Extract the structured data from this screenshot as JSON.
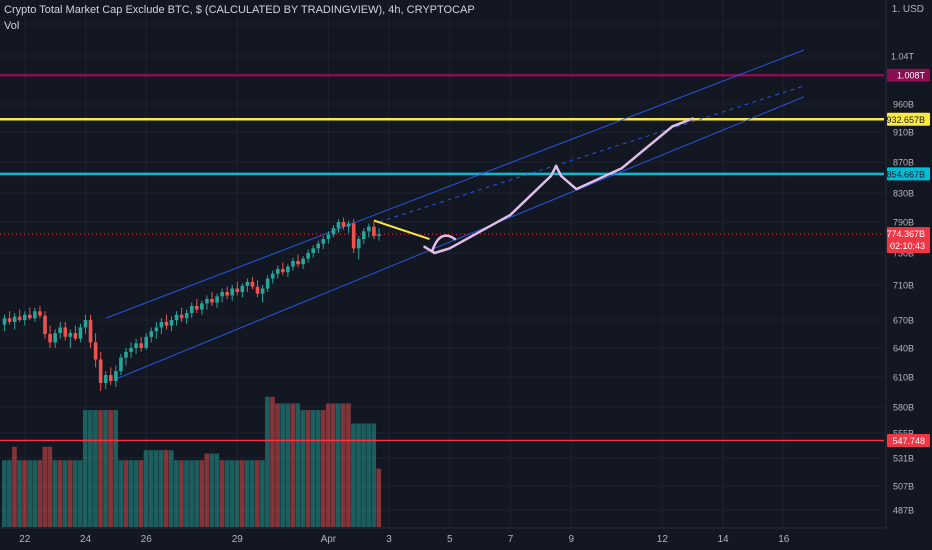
{
  "header": {
    "title": "Crypto Total Market Cap Exclude BTC, $ (CALCULATED BY TRADINGVIEW), 4h, CRYPTOCAP",
    "volume_label": "Vol",
    "scale_currency": "1. USD"
  },
  "chart_data": {
    "type": "candlestick",
    "title": "Crypto Total Market Cap Exclude BTC, $ (CALCULATED BY TRADINGVIEW), 4h, CRYPTOCAP",
    "x_tick_labels": [
      {
        "label": "22",
        "bar": 4
      },
      {
        "label": "24",
        "bar": 16
      },
      {
        "label": "26",
        "bar": 28
      },
      {
        "label": "29",
        "bar": 46
      },
      {
        "label": "Apr",
        "bar": 64
      },
      {
        "label": "3",
        "bar": 76
      },
      {
        "label": "5",
        "bar": 88
      },
      {
        "label": "7",
        "bar": 100
      },
      {
        "label": "9",
        "bar": 112
      },
      {
        "label": "12",
        "bar": 130
      },
      {
        "label": "14",
        "bar": 142
      },
      {
        "label": "16",
        "bar": 154
      }
    ],
    "y_tick_labels": [
      "1.04T",
      "960B",
      "910B",
      "870B",
      "830B",
      "790B",
      "750B",
      "710B",
      "670B",
      "640B",
      "610B",
      "580B",
      "555B",
      "531B",
      "507B",
      "487B"
    ],
    "y_tick_values": [
      1040,
      960,
      910,
      870,
      830,
      790,
      750,
      710,
      670,
      640,
      610,
      580,
      555,
      531,
      507,
      487
    ],
    "ylim": [
      480,
      1100
    ],
    "candles": [
      {
        "o": 665,
        "h": 676,
        "l": 658,
        "c": 672
      },
      {
        "o": 672,
        "h": 680,
        "l": 665,
        "c": 668
      },
      {
        "o": 668,
        "h": 678,
        "l": 660,
        "c": 674
      },
      {
        "o": 674,
        "h": 682,
        "l": 668,
        "c": 670
      },
      {
        "o": 670,
        "h": 680,
        "l": 664,
        "c": 676
      },
      {
        "o": 676,
        "h": 684,
        "l": 670,
        "c": 672
      },
      {
        "o": 672,
        "h": 684,
        "l": 668,
        "c": 680
      },
      {
        "o": 680,
        "h": 686,
        "l": 672,
        "c": 675
      },
      {
        "o": 675,
        "h": 680,
        "l": 650,
        "c": 655
      },
      {
        "o": 655,
        "h": 664,
        "l": 640,
        "c": 646
      },
      {
        "o": 646,
        "h": 660,
        "l": 640,
        "c": 656
      },
      {
        "o": 656,
        "h": 668,
        "l": 650,
        "c": 662
      },
      {
        "o": 662,
        "h": 668,
        "l": 648,
        "c": 652
      },
      {
        "o": 652,
        "h": 660,
        "l": 640,
        "c": 656
      },
      {
        "o": 656,
        "h": 664,
        "l": 648,
        "c": 650
      },
      {
        "o": 650,
        "h": 666,
        "l": 646,
        "c": 662
      },
      {
        "o": 662,
        "h": 676,
        "l": 655,
        "c": 670
      },
      {
        "o": 670,
        "h": 676,
        "l": 640,
        "c": 646
      },
      {
        "o": 646,
        "h": 656,
        "l": 620,
        "c": 628
      },
      {
        "o": 628,
        "h": 636,
        "l": 596,
        "c": 604
      },
      {
        "o": 604,
        "h": 616,
        "l": 598,
        "c": 612
      },
      {
        "o": 612,
        "h": 620,
        "l": 602,
        "c": 606
      },
      {
        "o": 606,
        "h": 622,
        "l": 600,
        "c": 616
      },
      {
        "o": 616,
        "h": 634,
        "l": 612,
        "c": 630
      },
      {
        "o": 630,
        "h": 640,
        "l": 622,
        "c": 636
      },
      {
        "o": 636,
        "h": 646,
        "l": 630,
        "c": 640
      },
      {
        "o": 640,
        "h": 650,
        "l": 634,
        "c": 645
      },
      {
        "o": 645,
        "h": 652,
        "l": 636,
        "c": 640
      },
      {
        "o": 640,
        "h": 656,
        "l": 638,
        "c": 652
      },
      {
        "o": 652,
        "h": 662,
        "l": 646,
        "c": 658
      },
      {
        "o": 658,
        "h": 668,
        "l": 650,
        "c": 662
      },
      {
        "o": 662,
        "h": 672,
        "l": 655,
        "c": 668
      },
      {
        "o": 668,
        "h": 676,
        "l": 660,
        "c": 664
      },
      {
        "o": 664,
        "h": 674,
        "l": 658,
        "c": 670
      },
      {
        "o": 670,
        "h": 680,
        "l": 664,
        "c": 676
      },
      {
        "o": 676,
        "h": 684,
        "l": 668,
        "c": 672
      },
      {
        "o": 672,
        "h": 682,
        "l": 666,
        "c": 678
      },
      {
        "o": 678,
        "h": 690,
        "l": 672,
        "c": 686
      },
      {
        "o": 686,
        "h": 694,
        "l": 678,
        "c": 682
      },
      {
        "o": 682,
        "h": 692,
        "l": 676,
        "c": 689
      },
      {
        "o": 689,
        "h": 698,
        "l": 682,
        "c": 694
      },
      {
        "o": 694,
        "h": 702,
        "l": 686,
        "c": 690
      },
      {
        "o": 690,
        "h": 700,
        "l": 684,
        "c": 697
      },
      {
        "o": 697,
        "h": 706,
        "l": 690,
        "c": 702
      },
      {
        "o": 702,
        "h": 708,
        "l": 694,
        "c": 698
      },
      {
        "o": 698,
        "h": 710,
        "l": 692,
        "c": 706
      },
      {
        "o": 706,
        "h": 714,
        "l": 698,
        "c": 702
      },
      {
        "o": 702,
        "h": 712,
        "l": 696,
        "c": 709
      },
      {
        "o": 709,
        "h": 718,
        "l": 702,
        "c": 714
      },
      {
        "o": 714,
        "h": 720,
        "l": 705,
        "c": 708
      },
      {
        "o": 708,
        "h": 716,
        "l": 696,
        "c": 700
      },
      {
        "o": 700,
        "h": 710,
        "l": 690,
        "c": 706
      },
      {
        "o": 706,
        "h": 722,
        "l": 702,
        "c": 718
      },
      {
        "o": 718,
        "h": 728,
        "l": 712,
        "c": 724
      },
      {
        "o": 724,
        "h": 734,
        "l": 718,
        "c": 730
      },
      {
        "o": 730,
        "h": 738,
        "l": 722,
        "c": 726
      },
      {
        "o": 726,
        "h": 736,
        "l": 720,
        "c": 733
      },
      {
        "o": 733,
        "h": 744,
        "l": 728,
        "c": 740
      },
      {
        "o": 740,
        "h": 748,
        "l": 732,
        "c": 736
      },
      {
        "o": 736,
        "h": 746,
        "l": 730,
        "c": 743
      },
      {
        "o": 743,
        "h": 754,
        "l": 738,
        "c": 750
      },
      {
        "o": 750,
        "h": 760,
        "l": 744,
        "c": 756
      },
      {
        "o": 756,
        "h": 766,
        "l": 750,
        "c": 762
      },
      {
        "o": 762,
        "h": 772,
        "l": 755,
        "c": 768
      },
      {
        "o": 768,
        "h": 778,
        "l": 762,
        "c": 774
      },
      {
        "o": 774,
        "h": 786,
        "l": 770,
        "c": 782
      },
      {
        "o": 782,
        "h": 794,
        "l": 776,
        "c": 790
      },
      {
        "o": 790,
        "h": 796,
        "l": 780,
        "c": 784
      },
      {
        "o": 784,
        "h": 792,
        "l": 776,
        "c": 788
      },
      {
        "o": 788,
        "h": 794,
        "l": 750,
        "c": 756
      },
      {
        "o": 756,
        "h": 772,
        "l": 742,
        "c": 768
      },
      {
        "o": 768,
        "h": 782,
        "l": 762,
        "c": 778
      },
      {
        "o": 778,
        "h": 788,
        "l": 770,
        "c": 784
      },
      {
        "o": 784,
        "h": 790,
        "l": 768,
        "c": 772
      },
      {
        "o": 772,
        "h": 782,
        "l": 766,
        "c": 774
      }
    ],
    "volume": {
      "ylim": [
        0,
        100
      ],
      "values": [
        {
          "v": 40,
          "up": true
        },
        {
          "v": 40,
          "up": true
        },
        {
          "v": 48,
          "up": false
        },
        {
          "v": 40,
          "up": true
        },
        {
          "v": 40,
          "up": false
        },
        {
          "v": 40,
          "up": true
        },
        {
          "v": 40,
          "up": true
        },
        {
          "v": 40,
          "up": false
        },
        {
          "v": 48,
          "up": false
        },
        {
          "v": 48,
          "up": false
        },
        {
          "v": 40,
          "up": true
        },
        {
          "v": 40,
          "up": false
        },
        {
          "v": 40,
          "up": true
        },
        {
          "v": 40,
          "up": false
        },
        {
          "v": 40,
          "up": true
        },
        {
          "v": 40,
          "up": true
        },
        {
          "v": 70,
          "up": true
        },
        {
          "v": 70,
          "up": true
        },
        {
          "v": 70,
          "up": true
        },
        {
          "v": 70,
          "up": false
        },
        {
          "v": 70,
          "up": true
        },
        {
          "v": 70,
          "up": false
        },
        {
          "v": 70,
          "up": true
        },
        {
          "v": 40,
          "up": true
        },
        {
          "v": 40,
          "up": false
        },
        {
          "v": 40,
          "up": true
        },
        {
          "v": 40,
          "up": true
        },
        {
          "v": 40,
          "up": false
        },
        {
          "v": 46,
          "up": true
        },
        {
          "v": 46,
          "up": true
        },
        {
          "v": 46,
          "up": true
        },
        {
          "v": 46,
          "up": true
        },
        {
          "v": 46,
          "up": false
        },
        {
          "v": 46,
          "up": true
        },
        {
          "v": 40,
          "up": true
        },
        {
          "v": 40,
          "up": false
        },
        {
          "v": 40,
          "up": true
        },
        {
          "v": 40,
          "up": true
        },
        {
          "v": 40,
          "up": true
        },
        {
          "v": 40,
          "up": false
        },
        {
          "v": 44,
          "up": false
        },
        {
          "v": 44,
          "up": true
        },
        {
          "v": 44,
          "up": true
        },
        {
          "v": 40,
          "up": false
        },
        {
          "v": 40,
          "up": true
        },
        {
          "v": 40,
          "up": true
        },
        {
          "v": 40,
          "up": true
        },
        {
          "v": 40,
          "up": false
        },
        {
          "v": 40,
          "up": true
        },
        {
          "v": 40,
          "up": true
        },
        {
          "v": 40,
          "up": false
        },
        {
          "v": 40,
          "up": true
        },
        {
          "v": 78,
          "up": true
        },
        {
          "v": 78,
          "up": false
        },
        {
          "v": 74,
          "up": false
        },
        {
          "v": 74,
          "up": true
        },
        {
          "v": 74,
          "up": true
        },
        {
          "v": 74,
          "up": false
        },
        {
          "v": 74,
          "up": true
        },
        {
          "v": 70,
          "up": true
        },
        {
          "v": 70,
          "up": false
        },
        {
          "v": 70,
          "up": true
        },
        {
          "v": 70,
          "up": true
        },
        {
          "v": 70,
          "up": false
        },
        {
          "v": 74,
          "up": false
        },
        {
          "v": 74,
          "up": false
        },
        {
          "v": 74,
          "up": true
        },
        {
          "v": 74,
          "up": false
        },
        {
          "v": 74,
          "up": false
        },
        {
          "v": 62,
          "up": true
        },
        {
          "v": 62,
          "up": true
        },
        {
          "v": 62,
          "up": true
        },
        {
          "v": 62,
          "up": true
        },
        {
          "v": 62,
          "up": true
        },
        {
          "v": 35,
          "up": false
        }
      ]
    },
    "horizontal_levels": [
      {
        "value": 1008,
        "label": "1.008T",
        "color": "#880e4f"
      },
      {
        "value": 932.657,
        "label": "932.657B",
        "color": "#ffeb3b"
      },
      {
        "value": 854.667,
        "label": "854.667B",
        "color": "#00bcd4"
      },
      {
        "value": 547.748,
        "label": "547.748",
        "color": "#f23645"
      }
    ],
    "last_price": {
      "value": 774.367,
      "label": "774.367B",
      "countdown": "02:10:43",
      "color": "#f23645"
    },
    "channel": {
      "color": "#2962ff",
      "upper": [
        {
          "bar": 20,
          "value": 672
        },
        {
          "bar": 158,
          "value": 1050
        }
      ],
      "mid": [
        {
          "bar": 74,
          "value": 790
        },
        {
          "bar": 158,
          "value": 990
        }
      ],
      "lower": [
        {
          "bar": 22,
          "value": 608
        },
        {
          "bar": 158,
          "value": 972
        }
      ]
    },
    "trendline": {
      "color": "#ffeb3b",
      "from": {
        "bar": 73,
        "value": 792
      },
      "to": {
        "bar": 84,
        "value": 768
      }
    },
    "projection": {
      "color": "#e1bee7"
    },
    "colors": {
      "up": "#26a69a",
      "down": "#ef5350",
      "vol_up": "#26a69a",
      "vol_down": "#ef5350"
    }
  }
}
